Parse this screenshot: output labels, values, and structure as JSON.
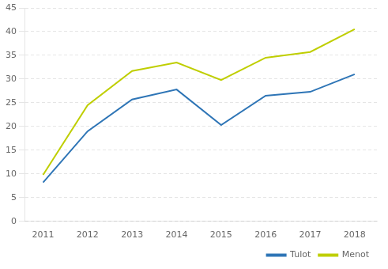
{
  "chart_data": {
    "type": "line",
    "x": [
      2011,
      2012,
      2013,
      2014,
      2015,
      2016,
      2017,
      2018
    ],
    "series": [
      {
        "name": "Tulot",
        "color": "#2E75B6",
        "values": [
          8.2,
          19.0,
          25.7,
          27.8,
          20.3,
          26.5,
          27.3,
          31.0
        ]
      },
      {
        "name": "Menot",
        "color": "#BFCE00",
        "values": [
          9.8,
          24.5,
          31.7,
          33.5,
          29.8,
          34.5,
          35.7,
          40.5
        ]
      }
    ],
    "xlim": [
      2010.6,
      2018.5
    ],
    "xticks": [
      2011,
      2012,
      2013,
      2014,
      2015,
      2016,
      2017,
      2018
    ],
    "ylim": [
      0,
      45
    ],
    "yticks": [
      0,
      5,
      10,
      15,
      20,
      25,
      30,
      35,
      40,
      45
    ],
    "grid": "y",
    "legend": "lower right"
  }
}
